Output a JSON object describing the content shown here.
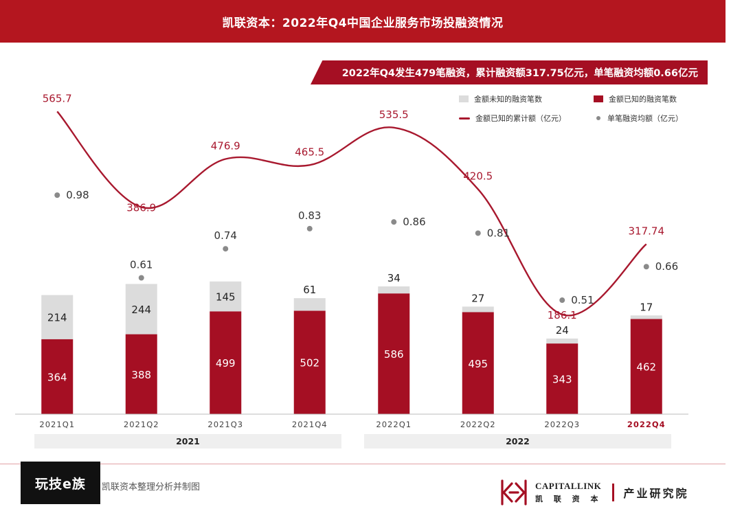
{
  "header": {
    "title": "凯联资本：2022年Q4中国企业服务市场投融资情况"
  },
  "subtitle": "2022年Q4发生479笔融资，累计融资额317.75亿元，单笔融资均额0.66亿元",
  "legend": {
    "unknown": "金额未知的融资笔数",
    "known": "金额已知的融资笔数",
    "cumulative": "金额已知的累计额（亿元）",
    "average": "单笔融资均额（亿元）"
  },
  "colors": {
    "known": "#a50f23",
    "unknown": "#dcdcdc",
    "line": "#a8182e",
    "dot": "#8a8a8a",
    "header": "#b4161f"
  },
  "chart_data": {
    "type": "bar",
    "categories": [
      "2021Q1",
      "2021Q2",
      "2021Q3",
      "2021Q4",
      "2022Q1",
      "2022Q2",
      "2022Q3",
      "2022Q4"
    ],
    "year_groups": [
      "2021",
      "2022"
    ],
    "highlight_category": "2022Q4",
    "series": [
      {
        "name": "金额已知的融资笔数",
        "kind": "stacked-bar",
        "values": [
          364,
          388,
          499,
          502,
          586,
          495,
          343,
          462
        ]
      },
      {
        "name": "金额未知的融资笔数",
        "kind": "stacked-bar",
        "values": [
          214,
          244,
          145,
          61,
          34,
          27,
          24,
          17
        ]
      },
      {
        "name": "金额已知的累计额（亿元）",
        "kind": "line",
        "values": [
          565.7,
          386.9,
          476.9,
          465.5,
          535.5,
          420.5,
          186.1,
          317.74
        ]
      },
      {
        "name": "单笔融资均额（亿元）",
        "kind": "scatter",
        "values": [
          0.98,
          0.61,
          0.74,
          0.83,
          0.86,
          0.81,
          0.51,
          0.66
        ]
      }
    ],
    "ylim_bars": [
      0,
      750
    ],
    "ylim_line": [
      0,
      620
    ],
    "ylim_dots": [
      0,
      1.3
    ]
  },
  "footer": {
    "watermark": "玩技e族",
    "source": "凯联资本整理分析并制图",
    "brand_en": "CAPITALLINK",
    "brand_cn": "凯 联 资 本",
    "dept": "产业研究院"
  }
}
